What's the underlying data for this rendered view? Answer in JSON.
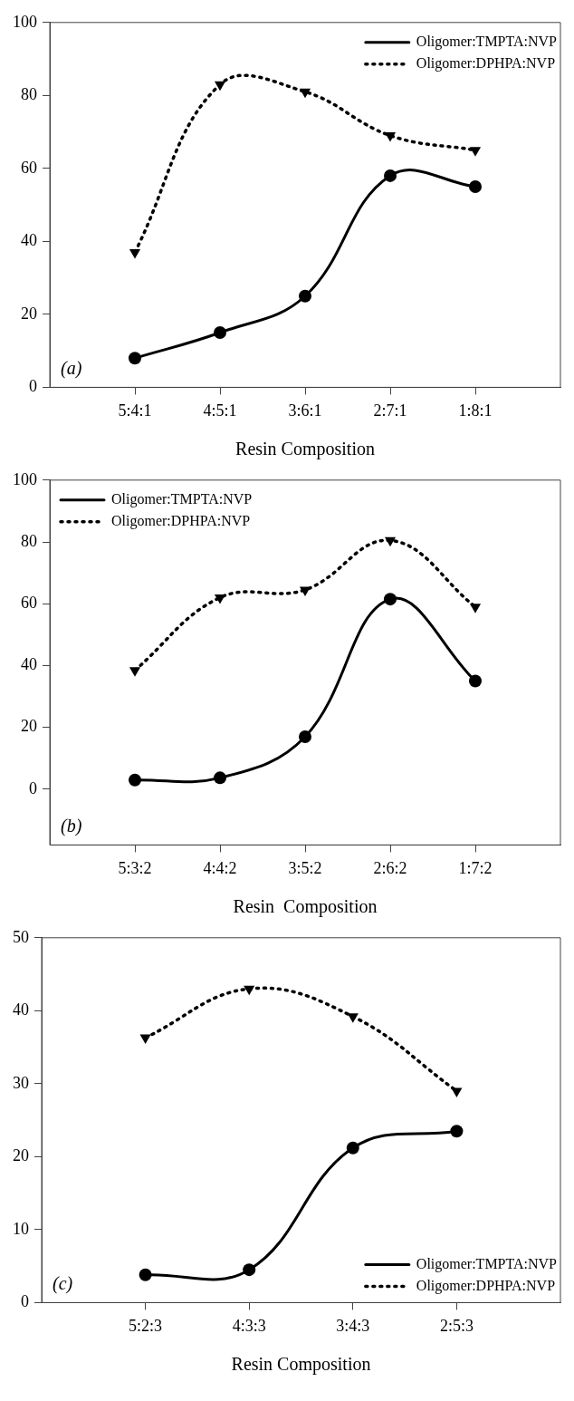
{
  "chart_data": [
    {
      "type": "line",
      "xlabel": "Resin Composition",
      "categories": [
        "5:4:1",
        "4:5:1",
        "3:6:1",
        "2:7:1",
        "1:8:1"
      ],
      "ylim": [
        0,
        100
      ],
      "yticks": [
        0,
        20,
        40,
        60,
        80,
        100
      ],
      "grid": false,
      "legend": "top right",
      "annotations": [
        "(a)"
      ],
      "series": [
        {
          "name": "Oligomer:TMPTA:NVP",
          "color": "#000000",
          "values": [
            8,
            15,
            25,
            58,
            55
          ],
          "marker": "circle",
          "line_style": "solid"
        },
        {
          "name": "Oligomer:DPHPA:NVP",
          "color": "#000000",
          "values": [
            37,
            83,
            81,
            69,
            65
          ],
          "marker": "triangle",
          "line_style": "dotted"
        }
      ]
    },
    {
      "type": "line",
      "xlabel": "Resin  Composition",
      "categories": [
        "5:3:2",
        "4:4:2",
        "3:5:2",
        "2:6:2",
        "1:7:2"
      ],
      "ylim": [
        -18,
        100
      ],
      "yticks": [
        0,
        20,
        40,
        60,
        80,
        100
      ],
      "grid": false,
      "legend": "top left",
      "annotations": [
        "(b)"
      ],
      "series": [
        {
          "name": "Oligomer:TMPTA:NVP",
          "color": "#000000",
          "values": [
            3,
            3.7,
            17,
            61.5,
            35
          ],
          "marker": "circle",
          "line_style": "solid"
        },
        {
          "name": "Oligomer:DPHPA:NVP",
          "color": "#000000",
          "values": [
            38.5,
            62,
            64.5,
            80.5,
            59
          ],
          "marker": "triangle",
          "line_style": "dotted"
        }
      ]
    },
    {
      "type": "line",
      "xlabel": "Resin Composition",
      "categories": [
        "5:2:3",
        "4:3:3",
        "3:4:3",
        "2:5:3"
      ],
      "ylim": [
        0,
        50
      ],
      "yticks": [
        0,
        10,
        20,
        30,
        40,
        50
      ],
      "grid": false,
      "legend": "bottom right",
      "annotations": [
        "(c)"
      ],
      "series": [
        {
          "name": "Oligomer:TMPTA:NVP",
          "color": "#000000",
          "values": [
            3.8,
            4.5,
            21.2,
            23.5
          ],
          "marker": "circle",
          "line_style": "solid"
        },
        {
          "name": "Oligomer:DPHPA:NVP",
          "color": "#000000",
          "values": [
            36.3,
            43,
            39.2,
            29
          ],
          "marker": "triangle",
          "line_style": "dotted"
        }
      ]
    }
  ]
}
